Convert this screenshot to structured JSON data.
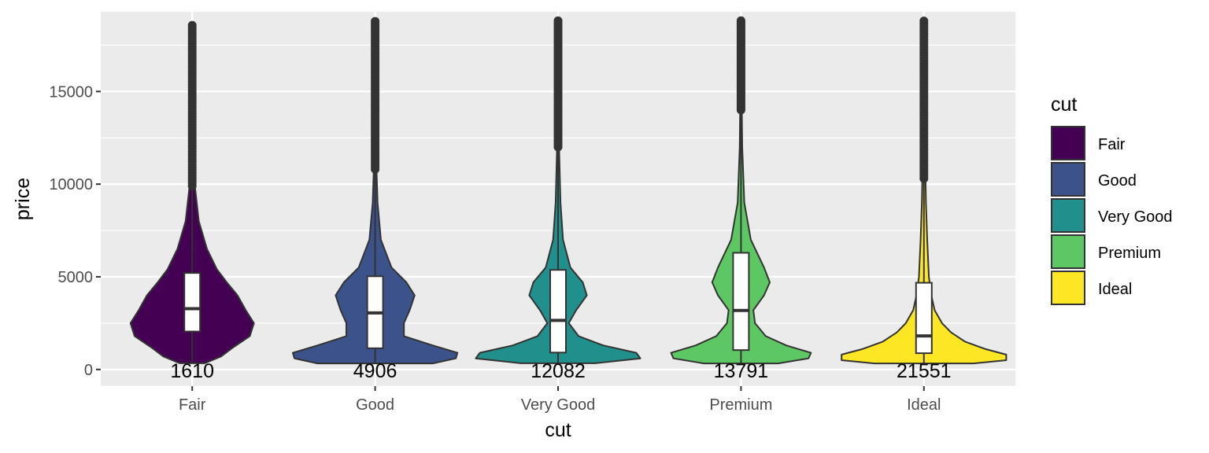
{
  "chart_data": {
    "type": "violin",
    "xlabel": "cut",
    "ylabel": "price",
    "categories": [
      "Fair",
      "Good",
      "Very Good",
      "Premium",
      "Ideal"
    ],
    "ylim": [
      -900,
      19300
    ],
    "yticks": [
      0,
      5000,
      10000,
      15000
    ],
    "ytick_labels": [
      "0",
      "5000",
      "10000",
      "15000"
    ],
    "grid": true,
    "legend": {
      "title": "cut",
      "position": "right",
      "entries": [
        "Fair",
        "Good",
        "Very Good",
        "Premium",
        "Ideal"
      ]
    },
    "colors": {
      "Fair": "#440154",
      "Good": "#3B528B",
      "Very Good": "#21908C",
      "Premium": "#5DC863",
      "Ideal": "#FDE725"
    },
    "series": [
      {
        "category": "Fair",
        "count": 1610,
        "count_label": "1610",
        "color": "#440154",
        "min": 337,
        "max": 18574,
        "box": {
          "q1": 2050,
          "median": 3282,
          "q3": 5206,
          "whisker_low": 337,
          "whisker_high": 9900
        },
        "outliers_from": 9900,
        "outliers_to": 18574,
        "density": [
          [
            337,
            0.15
          ],
          [
            700,
            0.35
          ],
          [
            1200,
            0.5
          ],
          [
            1800,
            0.7
          ],
          [
            2500,
            0.75
          ],
          [
            3200,
            0.65
          ],
          [
            4000,
            0.55
          ],
          [
            4700,
            0.42
          ],
          [
            5400,
            0.3
          ],
          [
            6500,
            0.18
          ],
          [
            8000,
            0.08
          ],
          [
            10000,
            0.03
          ],
          [
            13000,
            0.015
          ],
          [
            16000,
            0.008
          ],
          [
            18574,
            0.005
          ]
        ]
      },
      {
        "category": "Good",
        "count": 4906,
        "count_label": "4906",
        "color": "#3B528B",
        "min": 327,
        "max": 18788,
        "box": {
          "q1": 1145,
          "median": 3051,
          "q3": 5028,
          "whisker_low": 327,
          "whisker_high": 10800
        },
        "outliers_from": 10800,
        "outliers_to": 18788,
        "density": [
          [
            327,
            0.7
          ],
          [
            600,
            0.98
          ],
          [
            900,
            1.0
          ],
          [
            1300,
            0.7
          ],
          [
            1800,
            0.35
          ],
          [
            2500,
            0.35
          ],
          [
            3200,
            0.42
          ],
          [
            4000,
            0.48
          ],
          [
            4700,
            0.38
          ],
          [
            5500,
            0.2
          ],
          [
            7000,
            0.07
          ],
          [
            9000,
            0.03
          ],
          [
            11000,
            0.015
          ],
          [
            15000,
            0.008
          ],
          [
            18788,
            0.005
          ]
        ]
      },
      {
        "category": "Very Good",
        "count": 12082,
        "count_label": "12082",
        "color": "#21908C",
        "min": 336,
        "max": 18818,
        "box": {
          "q1": 912,
          "median": 2648,
          "q3": 5373,
          "whisker_low": 336,
          "whisker_high": 12000
        },
        "outliers_from": 12000,
        "outliers_to": 18818,
        "density": [
          [
            336,
            0.45
          ],
          [
            600,
            1.0
          ],
          [
            900,
            0.95
          ],
          [
            1300,
            0.55
          ],
          [
            1800,
            0.25
          ],
          [
            2500,
            0.13
          ],
          [
            3200,
            0.22
          ],
          [
            4000,
            0.35
          ],
          [
            4700,
            0.3
          ],
          [
            5500,
            0.15
          ],
          [
            7000,
            0.06
          ],
          [
            9000,
            0.03
          ],
          [
            12000,
            0.012
          ],
          [
            15000,
            0.008
          ],
          [
            18818,
            0.005
          ]
        ]
      },
      {
        "category": "Premium",
        "count": 13791,
        "count_label": "13791",
        "color": "#5DC863",
        "min": 326,
        "max": 18823,
        "box": {
          "q1": 1046,
          "median": 3185,
          "q3": 6296,
          "whisker_low": 326,
          "whisker_high": 14000
        },
        "outliers_from": 14000,
        "outliers_to": 18823,
        "density": [
          [
            326,
            0.45
          ],
          [
            600,
            0.82
          ],
          [
            900,
            0.85
          ],
          [
            1300,
            0.55
          ],
          [
            1800,
            0.3
          ],
          [
            2500,
            0.17
          ],
          [
            3200,
            0.15
          ],
          [
            4000,
            0.28
          ],
          [
            4700,
            0.35
          ],
          [
            5500,
            0.28
          ],
          [
            7000,
            0.12
          ],
          [
            9000,
            0.04
          ],
          [
            12000,
            0.015
          ],
          [
            15000,
            0.008
          ],
          [
            18823,
            0.005
          ]
        ]
      },
      {
        "category": "Ideal",
        "count": 21551,
        "count_label": "21551",
        "color": "#FDE725",
        "min": 326,
        "max": 18806,
        "box": {
          "q1": 878,
          "median": 1810,
          "q3": 4678,
          "whisker_low": 326,
          "whisker_high": 10300
        },
        "outliers_from": 10300,
        "outliers_to": 18806,
        "density": [
          [
            326,
            0.6
          ],
          [
            500,
            1.0
          ],
          [
            800,
            1.0
          ],
          [
            1100,
            0.75
          ],
          [
            1500,
            0.5
          ],
          [
            2000,
            0.33
          ],
          [
            2500,
            0.22
          ],
          [
            3200,
            0.13
          ],
          [
            4000,
            0.09
          ],
          [
            5000,
            0.06
          ],
          [
            7000,
            0.04
          ],
          [
            9000,
            0.025
          ],
          [
            12000,
            0.012
          ],
          [
            15000,
            0.008
          ],
          [
            18806,
            0.005
          ]
        ]
      }
    ]
  }
}
